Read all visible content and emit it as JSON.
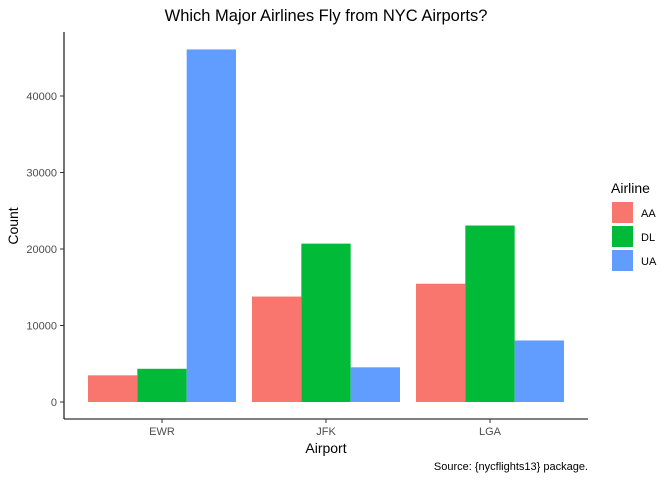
{
  "chart_data": {
    "type": "bar",
    "title": "Which Major Airlines Fly from NYC Airports?",
    "xlabel": "Airport",
    "ylabel": "Count",
    "caption": "Source: {nycflights13} package.",
    "categories": [
      "EWR",
      "JFK",
      "LGA"
    ],
    "series": [
      {
        "name": "AA",
        "color": "#F8766D",
        "values": [
          3487,
          13783,
          15459
        ]
      },
      {
        "name": "DL",
        "color": "#00BA38",
        "values": [
          4342,
          20701,
          23067
        ]
      },
      {
        "name": "UA",
        "color": "#619CFF",
        "values": [
          46087,
          4534,
          8044
        ]
      }
    ],
    "ylim": [
      0,
      48000
    ],
    "yticks": [
      0,
      10000,
      20000,
      30000,
      40000
    ],
    "ytick_labels": [
      "0",
      "10000",
      "20000",
      "30000",
      "40000"
    ],
    "legend": {
      "title": "Airline",
      "position": "right"
    },
    "grid": false
  }
}
